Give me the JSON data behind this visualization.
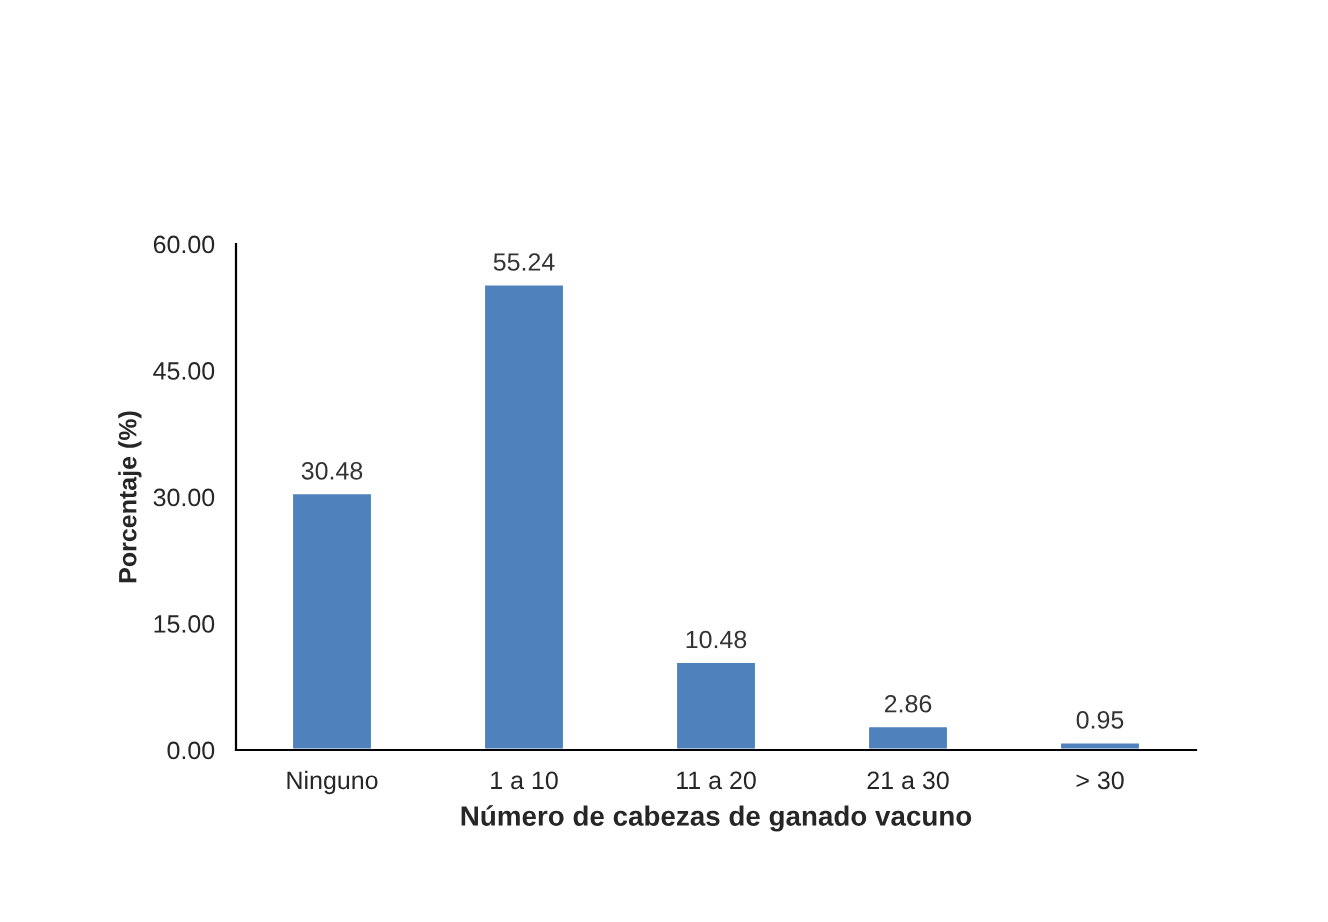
{
  "chart_data": {
    "type": "bar",
    "xlabel": "Número de cabezas de ganado vacuno",
    "ylabel": "Porcentaje (%)",
    "categories": [
      "Ninguno",
      "1 a 10",
      "11 a 20",
      "21 a 30",
      "> 30"
    ],
    "values": [
      30.48,
      55.24,
      10.48,
      2.86,
      0.95
    ],
    "color": "#4f81bd",
    "ylim": [
      0,
      60
    ],
    "yticks": [
      {
        "value": 0,
        "label": "0.00"
      },
      {
        "value": 15,
        "label": "15.00"
      },
      {
        "value": 30,
        "label": "30.00"
      },
      {
        "value": 45,
        "label": "45.00"
      },
      {
        "value": 60,
        "label": "60.00"
      }
    ],
    "data_labels": true,
    "grid": false,
    "legend": false
  }
}
